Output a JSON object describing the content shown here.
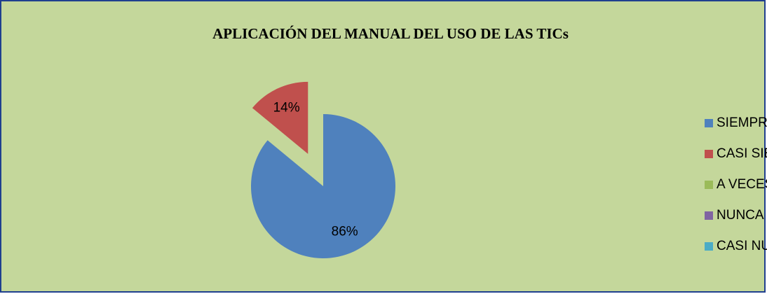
{
  "chart_data": {
    "type": "pie",
    "title": "APLICACIÓN DEL MANUAL DEL USO DE LAS TICs",
    "categories": [
      "SIEMPRE",
      "CASI SIEMPRE",
      "A VECES",
      "NUNCA",
      "CASI NUNCA"
    ],
    "values": [
      86,
      14,
      0,
      0,
      0
    ],
    "value_labels": [
      "86%",
      "14%",
      null,
      null,
      null
    ],
    "colors": [
      "#4f81bd",
      "#c0504d",
      "#9bbb59",
      "#8064a2",
      "#4bacc6"
    ],
    "explode": [
      false,
      true,
      false,
      false,
      false
    ],
    "legend": "right"
  }
}
